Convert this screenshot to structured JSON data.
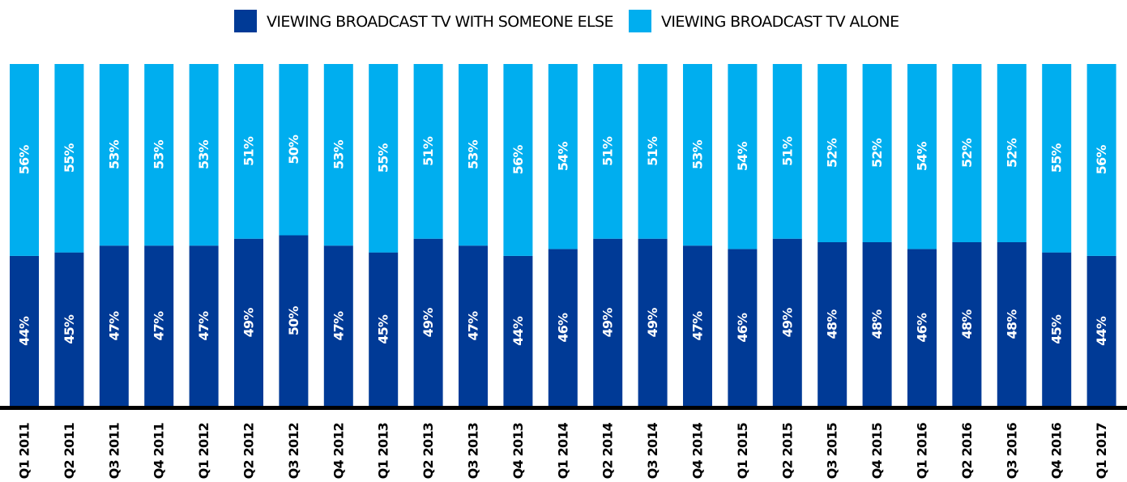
{
  "chart_data": {
    "type": "bar",
    "stacked": true,
    "orientation": "vertical",
    "categories": [
      "Q1 2011",
      "Q2 2011",
      "Q3 2011",
      "Q4 2011",
      "Q1 2012",
      "Q2 2012",
      "Q3 2012",
      "Q4 2012",
      "Q1 2013",
      "Q2 2013",
      "Q3 2013",
      "Q4 2013",
      "Q1 2014",
      "Q2 2014",
      "Q3 2014",
      "Q4 2014",
      "Q1 2015",
      "Q2 2015",
      "Q3 2015",
      "Q4 2015",
      "Q1 2016",
      "Q2 2016",
      "Q3 2016",
      "Q4 2016",
      "Q1 2017"
    ],
    "series": [
      {
        "name": "VIEWING BROADCAST TV WITH SOMEONE ELSE",
        "color": "#003a96",
        "values": [
          44,
          45,
          47,
          47,
          47,
          49,
          50,
          47,
          45,
          49,
          47,
          44,
          46,
          49,
          49,
          47,
          46,
          49,
          48,
          48,
          46,
          48,
          48,
          45,
          44
        ],
        "labels": [
          "44%",
          "45%",
          "47%",
          "47%",
          "47%",
          "49%",
          "50%",
          "47%",
          "45%",
          "49%",
          "47%",
          "44%",
          "46%",
          "49%",
          "49%",
          "47%",
          "46%",
          "49%",
          "48%",
          "48%",
          "46%",
          "48%",
          "48%",
          "45%",
          "44%"
        ]
      },
      {
        "name": "VIEWING BROADCAST TV ALONE",
        "color": "#00aeef",
        "values": [
          56,
          55,
          53,
          53,
          53,
          51,
          50,
          53,
          55,
          51,
          53,
          56,
          54,
          51,
          51,
          53,
          54,
          51,
          52,
          52,
          54,
          52,
          52,
          55,
          56
        ],
        "labels": [
          "56%",
          "55%",
          "53%",
          "53%",
          "53%",
          "51%",
          "50%",
          "53%",
          "55%",
          "51%",
          "53%",
          "56%",
          "54%",
          "51%",
          "51%",
          "53%",
          "54%",
          "51%",
          "52%",
          "52%",
          "54%",
          "52%",
          "52%",
          "55%",
          "56%"
        ]
      }
    ],
    "ylim": [
      0,
      100
    ],
    "legend_position": "top-center",
    "grid": false,
    "title": "",
    "xlabel": "",
    "ylabel": ""
  }
}
